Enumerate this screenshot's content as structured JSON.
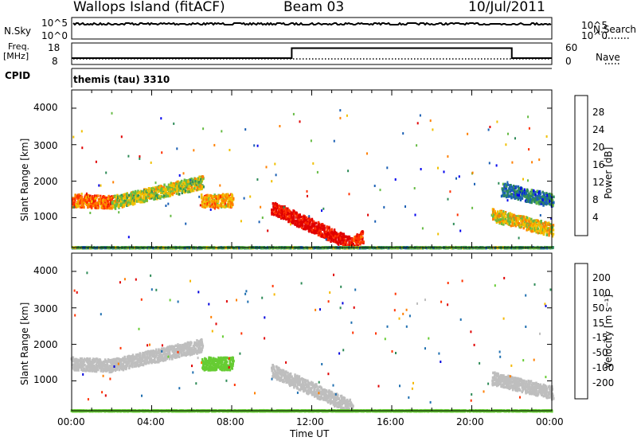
{
  "header": {
    "title": "Wallops Island (fitACF)",
    "beam": "Beam 03",
    "date": "10/Jul/2011"
  },
  "panels": {
    "nsky_label": "N.Sky",
    "nsky_ticks": [
      "10^5",
      "10^0"
    ],
    "nsearch_label": "N.Search",
    "nsearch_ticks": [
      "10^5",
      "10^0"
    ],
    "freq_label_1": "Freq.",
    "freq_label_2": "[MHz]",
    "freq_ticks": [
      "18",
      "8"
    ],
    "nave_label": "Nave",
    "nave_ticks": [
      "60",
      "0"
    ],
    "cpid_label": "CPID",
    "cpid_value": "themis (tau) 3310"
  },
  "axes": {
    "ylabel": "Slant Range [km]",
    "yticks": [
      "4000",
      "3000",
      "2000",
      "1000"
    ],
    "xticks": [
      "00:00",
      "04:00",
      "08:00",
      "12:00",
      "16:00",
      "20:00",
      "00:00"
    ],
    "xlabel": "Time UT"
  },
  "colorbars": {
    "power": {
      "label": "Power [dB]",
      "ticks": [
        "28",
        "24",
        "20",
        "16",
        "12",
        "8",
        "4"
      ],
      "colors": [
        "#0000ee",
        "#1a5fb4",
        "#2e8b57",
        "#66bb44",
        "#f0c000",
        "#ff8000",
        "#ff3000",
        "#e00000"
      ]
    },
    "velocity": {
      "label": "Velocity [m s⁻¹]",
      "ticks": [
        "200",
        "100",
        "50",
        "15",
        "-15",
        "-50",
        "-100",
        "-200"
      ],
      "colors": [
        "#0000dd",
        "#1f6fb0",
        "#2e8b57",
        "#66cc33",
        "#bebebe",
        "#f5b800",
        "#ff7f00",
        "#ff3300",
        "#e00000"
      ]
    }
  },
  "chart_data": [
    {
      "type": "heatmap",
      "title": "Power",
      "xlabel": "Time UT",
      "ylabel": "Slant Range [km]",
      "xlim": [
        0,
        24
      ],
      "ylim": [
        180,
        4500
      ],
      "zlabel": "Power [dB]",
      "zlim": [
        0,
        32
      ],
      "features": [
        {
          "t_start": 0.0,
          "t_end": 2.0,
          "range_start": 1500,
          "range_end": 1450,
          "value": 24
        },
        {
          "t_start": 2.0,
          "t_end": 6.5,
          "range_start": 1450,
          "range_end": 2000,
          "value": 16
        },
        {
          "t_start": 6.5,
          "t_end": 8.0,
          "range_start": 1500,
          "range_end": 1500,
          "value": 20
        },
        {
          "t_start": 10.0,
          "t_end": 14.0,
          "range_start": 1300,
          "range_end": 300,
          "value": 30
        },
        {
          "t_start": 14.0,
          "t_end": 14.5,
          "range_start": 300,
          "range_end": 500,
          "value": 26
        },
        {
          "t_start": 21.0,
          "t_end": 24.0,
          "range_start": 1100,
          "range_end": 700,
          "value": 18
        },
        {
          "t_start": 21.5,
          "t_end": 24.0,
          "range_start": 1800,
          "range_end": 1500,
          "value": 8
        },
        {
          "t_start": 0.0,
          "t_end": 24.0,
          "range_start": 200,
          "range_end": 200,
          "value": 12
        }
      ]
    },
    {
      "type": "heatmap",
      "title": "Velocity",
      "xlabel": "Time UT",
      "ylabel": "Slant Range [km]",
      "xlim": [
        0,
        24
      ],
      "ylim": [
        180,
        4500
      ],
      "zlabel": "Velocity [m s⁻¹]",
      "zlim": [
        -250,
        250
      ],
      "features": [
        {
          "t_start": 0.0,
          "t_end": 2.0,
          "range_start": 1500,
          "range_end": 1450,
          "value": 0
        },
        {
          "t_start": 2.0,
          "t_end": 6.5,
          "range_start": 1450,
          "range_end": 2000,
          "value": 0
        },
        {
          "t_start": 6.5,
          "t_end": 8.0,
          "range_start": 1500,
          "range_end": 1500,
          "value": 30
        },
        {
          "t_start": 10.0,
          "t_end": 14.0,
          "range_start": 1300,
          "range_end": 300,
          "value": 0
        },
        {
          "t_start": 21.0,
          "t_end": 24.0,
          "range_start": 1100,
          "range_end": 700,
          "value": 0
        },
        {
          "t_start": 0.0,
          "t_end": 24.0,
          "range_start": 200,
          "range_end": 200,
          "value": 40
        }
      ]
    }
  ]
}
